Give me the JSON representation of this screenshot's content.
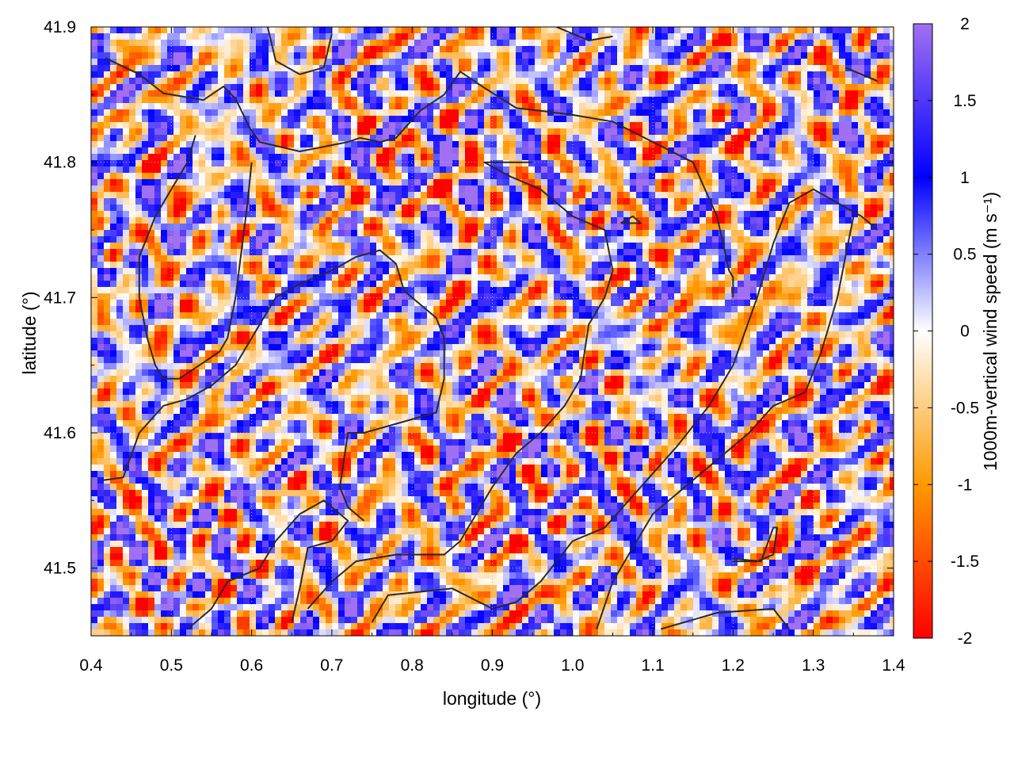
{
  "chart_data": {
    "type": "heatmap",
    "xlabel": "longitude (°)",
    "ylabel": "latitude (°)",
    "colorbar_label": "1000m-vertical wind speed (m s⁻¹)",
    "xlim": [
      0.4,
      1.4
    ],
    "ylim": [
      41.45,
      41.9
    ],
    "x_ticks": [
      "0.4",
      "0.5",
      "0.6",
      "0.7",
      "0.8",
      "0.9",
      "1.0",
      "1.1",
      "1.2",
      "1.3",
      "1.4"
    ],
    "y_ticks": [
      "41.5",
      "41.6",
      "41.7",
      "41.8",
      "41.9"
    ],
    "colorbar_range": [
      -2,
      2
    ],
    "colorbar_ticks": [
      "2",
      "1.5",
      "1",
      "0.5",
      "0",
      "-0.5",
      "-1",
      "-1.5",
      "-2"
    ],
    "colorscale": [
      {
        "value": -2,
        "color": "#ff0000"
      },
      {
        "value": -1,
        "color": "#ff9900"
      },
      {
        "value": 0,
        "color": "#ffffff"
      },
      {
        "value": 1,
        "color": "#0000ff"
      },
      {
        "value": 2,
        "color": "#a070f0"
      }
    ],
    "grid": "dotted",
    "contours": [
      {
        "name": "coastline-west",
        "points": [
          [
            0.418,
            41.877
          ],
          [
            0.46,
            41.865
          ],
          [
            0.49,
            41.851
          ],
          [
            0.54,
            41.846
          ],
          [
            0.565,
            41.856
          ],
          [
            0.58,
            41.847
          ],
          [
            0.598,
            41.825
          ],
          [
            0.61,
            41.815
          ],
          [
            0.66,
            41.808
          ],
          [
            0.72,
            41.815
          ],
          [
            0.735,
            41.818
          ],
          [
            0.76,
            41.815
          ],
          [
            0.78,
            41.818
          ],
          [
            0.81,
            41.838
          ],
          [
            0.84,
            41.85
          ],
          [
            0.86,
            41.867
          ],
          [
            0.89,
            41.855
          ],
          [
            0.93,
            41.84
          ],
          [
            0.96,
            41.838
          ],
          [
            1.0,
            41.835
          ],
          [
            1.05,
            41.83
          ],
          [
            1.1,
            41.815
          ],
          [
            1.15,
            41.8
          ],
          [
            1.18,
            41.76
          ],
          [
            1.195,
            41.72
          ],
          [
            1.2,
            41.715
          ],
          [
            1.2,
            41.7
          ]
        ]
      },
      {
        "name": "lake-east",
        "points": [
          [
            0.6,
            41.8
          ],
          [
            0.595,
            41.77
          ],
          [
            0.58,
            41.7
          ],
          [
            0.57,
            41.67
          ],
          [
            0.56,
            41.66
          ],
          [
            0.535,
            41.65
          ],
          [
            0.51,
            41.64
          ],
          [
            0.49,
            41.64
          ],
          [
            0.48,
            41.65
          ],
          [
            0.47,
            41.67
          ],
          [
            0.46,
            41.7
          ],
          [
            0.46,
            41.73
          ],
          [
            0.48,
            41.76
          ],
          [
            0.5,
            41.78
          ],
          [
            0.52,
            41.8
          ],
          [
            0.53,
            41.82
          ]
        ]
      },
      {
        "name": "ridge-central",
        "points": [
          [
            0.415,
            41.565
          ],
          [
            0.44,
            41.567
          ],
          [
            0.46,
            41.6
          ],
          [
            0.49,
            41.62
          ],
          [
            0.52,
            41.625
          ],
          [
            0.55,
            41.635
          ],
          [
            0.58,
            41.65
          ],
          [
            0.61,
            41.68
          ],
          [
            0.63,
            41.7
          ],
          [
            0.66,
            41.71
          ],
          [
            0.7,
            41.72
          ],
          [
            0.73,
            41.73
          ],
          [
            0.76,
            41.735
          ],
          [
            0.78,
            41.725
          ],
          [
            0.79,
            41.705
          ],
          [
            0.81,
            41.695
          ],
          [
            0.83,
            41.685
          ],
          [
            0.84,
            41.67
          ],
          [
            0.84,
            41.64
          ],
          [
            0.83,
            41.615
          ],
          [
            0.8,
            41.61
          ],
          [
            0.77,
            41.605
          ],
          [
            0.74,
            41.6
          ],
          [
            0.72,
            41.6
          ],
          [
            0.71,
            41.56
          ],
          [
            0.72,
            41.545
          ],
          [
            0.74,
            41.535
          ]
        ]
      },
      {
        "name": "valley-south",
        "points": [
          [
            0.52,
            41.455
          ],
          [
            0.55,
            41.47
          ],
          [
            0.57,
            41.49
          ],
          [
            0.61,
            41.5
          ],
          [
            0.63,
            41.52
          ],
          [
            0.66,
            41.54
          ],
          [
            0.69,
            41.55
          ],
          [
            0.72,
            41.535
          ],
          [
            0.7,
            41.52
          ],
          [
            0.67,
            41.515
          ],
          [
            0.66,
            41.485
          ],
          [
            0.65,
            41.46
          ]
        ]
      },
      {
        "name": "river-east",
        "points": [
          [
            0.67,
            41.47
          ],
          [
            0.7,
            41.49
          ],
          [
            0.73,
            41.505
          ],
          [
            0.78,
            41.51
          ],
          [
            0.84,
            41.51
          ],
          [
            0.86,
            41.52
          ],
          [
            0.88,
            41.54
          ],
          [
            0.9,
            41.56
          ],
          [
            0.93,
            41.585
          ],
          [
            0.96,
            41.6
          ],
          [
            0.99,
            41.62
          ],
          [
            1.01,
            41.64
          ],
          [
            1.02,
            41.68
          ],
          [
            1.04,
            41.7
          ],
          [
            1.05,
            41.72
          ],
          [
            1.04,
            41.75
          ],
          [
            1.0,
            41.76
          ],
          [
            0.96,
            41.78
          ],
          [
            0.92,
            41.79
          ],
          [
            0.89,
            41.8
          ],
          [
            0.95,
            41.8
          ]
        ]
      },
      {
        "name": "channel-southeast",
        "points": [
          [
            0.75,
            41.46
          ],
          [
            0.77,
            41.48
          ],
          [
            0.85,
            41.485
          ],
          [
            0.9,
            41.47
          ],
          [
            0.93,
            41.475
          ],
          [
            0.96,
            41.49
          ],
          [
            1.0,
            41.52
          ],
          [
            1.04,
            41.53
          ],
          [
            1.07,
            41.55
          ],
          [
            1.1,
            41.57
          ],
          [
            1.13,
            41.59
          ],
          [
            1.17,
            41.62
          ],
          [
            1.2,
            41.65
          ],
          [
            1.23,
            41.7
          ],
          [
            1.25,
            41.74
          ],
          [
            1.27,
            41.77
          ],
          [
            1.3,
            41.78
          ],
          [
            1.33,
            41.77
          ],
          [
            1.36,
            41.76
          ],
          [
            1.38,
            41.75
          ]
        ]
      },
      {
        "name": "ridge-east",
        "points": [
          [
            1.03,
            41.455
          ],
          [
            1.05,
            41.49
          ],
          [
            1.08,
            41.52
          ],
          [
            1.1,
            41.54
          ],
          [
            1.14,
            41.56
          ],
          [
            1.18,
            41.58
          ],
          [
            1.22,
            41.6
          ],
          [
            1.25,
            41.62
          ],
          [
            1.29,
            41.63
          ],
          [
            1.31,
            41.66
          ],
          [
            1.33,
            41.7
          ],
          [
            1.34,
            41.73
          ],
          [
            1.35,
            41.76
          ]
        ]
      },
      {
        "name": "spur-south",
        "points": [
          [
            1.11,
            41.455
          ],
          [
            1.18,
            41.467
          ],
          [
            1.25,
            41.47
          ],
          [
            1.27,
            41.455
          ]
        ]
      },
      {
        "name": "spur-east",
        "points": [
          [
            1.2,
            41.505
          ],
          [
            1.23,
            41.505
          ],
          [
            1.25,
            41.51
          ],
          [
            1.255,
            41.53
          ],
          [
            1.25,
            41.53
          ],
          [
            1.235,
            41.505
          ],
          [
            1.2,
            41.507
          ]
        ]
      },
      {
        "name": "ridge-north",
        "points": [
          [
            0.62,
            41.9
          ],
          [
            0.63,
            41.875
          ],
          [
            0.66,
            41.865
          ],
          [
            0.69,
            41.87
          ],
          [
            0.7,
            41.895
          ]
        ]
      },
      {
        "name": "coast-northeast",
        "points": [
          [
            1.34,
            41.87
          ],
          [
            1.38,
            41.86
          ]
        ]
      },
      {
        "name": "spur-north",
        "points": [
          [
            0.98,
            41.9
          ],
          [
            1.02,
            41.89
          ],
          [
            1.05,
            41.893
          ]
        ]
      },
      {
        "name": "islet",
        "points": [
          [
            1.06,
            41.755
          ],
          [
            1.075,
            41.76
          ],
          [
            1.085,
            41.755
          ],
          [
            1.06,
            41.755
          ]
        ]
      }
    ]
  }
}
